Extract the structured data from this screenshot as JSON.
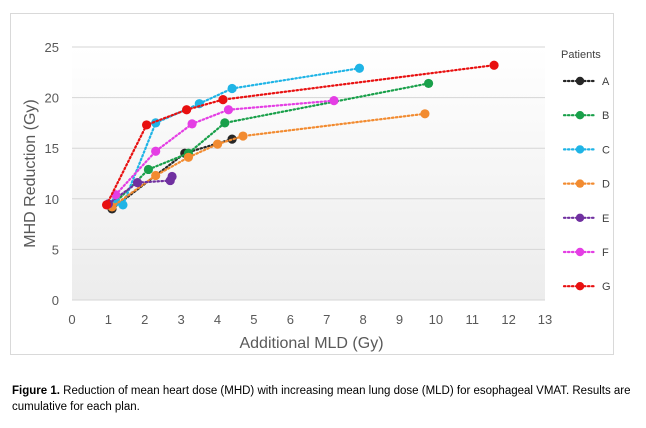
{
  "chart_data": {
    "type": "line",
    "xlabel": "Additional MLD (Gy)",
    "ylabel": "MHD Reduction (Gy)",
    "xlim": [
      0,
      13
    ],
    "ylim": [
      0,
      25
    ],
    "x_ticks": [
      "0",
      "1",
      "2",
      "3",
      "4",
      "5",
      "6",
      "7",
      "8",
      "9",
      "10",
      "11",
      "12",
      "13"
    ],
    "y_ticks": [
      "0",
      "5",
      "10",
      "15",
      "20",
      "25"
    ],
    "grid": "horizontal",
    "legend_title": "Patients",
    "legend_position": "right",
    "series": [
      {
        "name": "A",
        "color": "#262626",
        "points": [
          [
            1.1,
            9.0
          ],
          [
            3.1,
            14.5
          ],
          [
            4.4,
            15.9
          ]
        ]
      },
      {
        "name": "B",
        "color": "#19a04a",
        "points": [
          [
            1.1,
            9.3
          ],
          [
            2.1,
            12.9
          ],
          [
            3.2,
            14.5
          ],
          [
            4.2,
            17.5
          ],
          [
            9.8,
            21.4
          ]
        ]
      },
      {
        "name": "C",
        "color": "#1fb4e6",
        "points": [
          [
            1.2,
            9.7
          ],
          [
            1.4,
            9.4
          ],
          [
            2.3,
            17.5
          ],
          [
            3.5,
            19.4
          ],
          [
            4.4,
            20.9
          ],
          [
            7.9,
            22.9
          ]
        ]
      },
      {
        "name": "D",
        "color": "#f28b30",
        "points": [
          [
            1.1,
            9.2
          ],
          [
            2.3,
            12.3
          ],
          [
            3.2,
            14.1
          ],
          [
            4.0,
            15.4
          ],
          [
            4.7,
            16.2
          ],
          [
            9.7,
            18.4
          ]
        ]
      },
      {
        "name": "E",
        "color": "#7030a0",
        "points": [
          [
            1.0,
            9.5
          ],
          [
            1.8,
            11.6
          ],
          [
            2.7,
            11.8
          ],
          [
            2.75,
            12.2
          ]
        ]
      },
      {
        "name": "F",
        "color": "#e43ee4",
        "points": [
          [
            1.2,
            10.4
          ],
          [
            2.3,
            14.7
          ],
          [
            3.3,
            17.4
          ],
          [
            4.3,
            18.8
          ],
          [
            7.2,
            19.7
          ]
        ]
      },
      {
        "name": "G",
        "color": "#e81010",
        "points": [
          [
            0.95,
            9.4
          ],
          [
            2.05,
            17.3
          ],
          [
            3.15,
            18.8
          ],
          [
            4.15,
            19.8
          ],
          [
            11.6,
            23.2
          ]
        ]
      }
    ]
  },
  "caption": {
    "label": "Figure 1.",
    "text": "Reduction of mean heart dose (MHD) with increasing mean lung dose (MLD) for esophageal VMAT. Results are cumulative for each plan."
  }
}
